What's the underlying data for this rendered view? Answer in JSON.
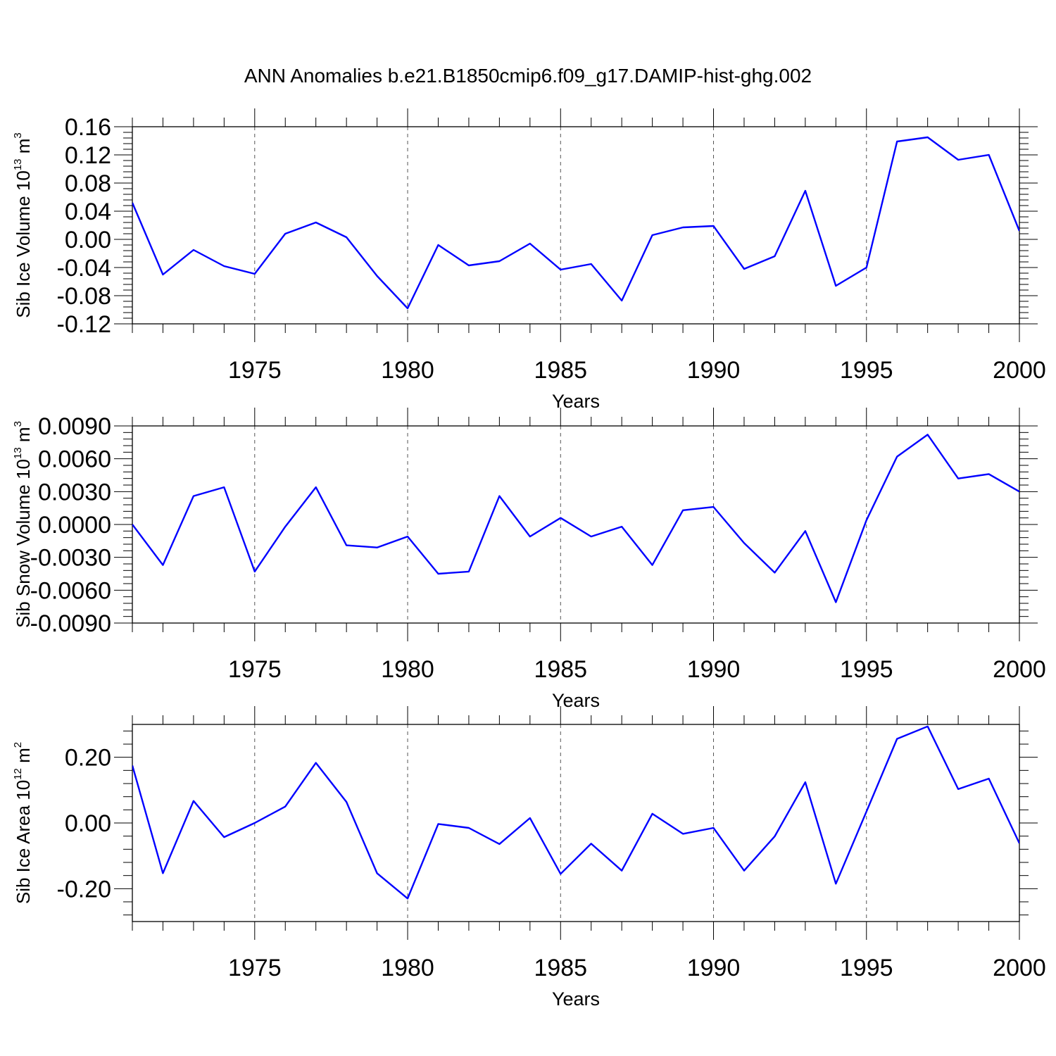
{
  "title": "ANN Anomalies b.e21.B1850cmip6.f09_g17.DAMIP-hist-ghg.002",
  "colors": {
    "series": "#0000ff",
    "axis": "#000000",
    "grid": "#555555"
  },
  "chart_data": [
    {
      "type": "line",
      "ylabel": {
        "prefix": "Sib Ice Volume 10",
        "exp": "13",
        "unit": " m",
        "unit_exp": "3"
      },
      "xlabel": "Years",
      "xlim": [
        1971,
        2000
      ],
      "xticks": [
        "1975",
        "1980",
        "1985",
        "1990",
        "1995",
        "2000"
      ],
      "ylim": [
        -0.12,
        0.16
      ],
      "yticks": [
        "-0.12",
        "-0.08",
        "-0.04",
        "0.00",
        "0.04",
        "0.08",
        "0.12",
        "0.16"
      ],
      "x": [
        1971,
        1972,
        1973,
        1974,
        1975,
        1976,
        1977,
        1978,
        1979,
        1980,
        1981,
        1982,
        1983,
        1984,
        1985,
        1986,
        1987,
        1988,
        1989,
        1990,
        1991,
        1992,
        1993,
        1994,
        1995,
        1996,
        1997,
        1998,
        1999,
        2000
      ],
      "values": [
        0.052,
        -0.05,
        -0.015,
        -0.038,
        -0.049,
        0.008,
        0.024,
        0.003,
        -0.052,
        -0.098,
        -0.008,
        -0.037,
        -0.031,
        -0.006,
        -0.043,
        -0.035,
        -0.087,
        0.006,
        0.017,
        0.019,
        -0.042,
        -0.024,
        0.069,
        -0.066,
        -0.04,
        0.139,
        0.145,
        0.113,
        0.12,
        0.012
      ]
    },
    {
      "type": "line",
      "ylabel": {
        "prefix": "Sib Snow Volume 10",
        "exp": "13",
        "unit": " m",
        "unit_exp": "3"
      },
      "xlabel": "Years",
      "xlim": [
        1971,
        2000
      ],
      "xticks": [
        "1975",
        "1980",
        "1985",
        "1990",
        "1995",
        "2000"
      ],
      "ylim": [
        -0.009,
        0.009
      ],
      "yticks": [
        "-0.0090",
        "-0.0060",
        "-0.0030",
        "0.0000",
        "0.0030",
        "0.0060",
        "0.0090"
      ],
      "x": [
        1971,
        1972,
        1973,
        1974,
        1975,
        1976,
        1977,
        1978,
        1979,
        1980,
        1981,
        1982,
        1983,
        1984,
        1985,
        1986,
        1987,
        1988,
        1989,
        1990,
        1991,
        1992,
        1993,
        1994,
        1995,
        1996,
        1997,
        1998,
        1999,
        2000
      ],
      "values": [
        0.0,
        -0.0037,
        0.0026,
        0.0034,
        -0.0043,
        -0.0002,
        0.0034,
        -0.0019,
        -0.0021,
        -0.0011,
        -0.0045,
        -0.0043,
        0.0026,
        -0.0011,
        0.0006,
        -0.0011,
        -0.0002,
        -0.0037,
        0.0013,
        0.0016,
        -0.0017,
        -0.0044,
        -0.0006,
        -0.0071,
        0.0004,
        0.0062,
        0.0082,
        0.0042,
        0.0046,
        0.003
      ]
    },
    {
      "type": "line",
      "ylabel": {
        "prefix": "Sib Ice Area 10",
        "exp": "12",
        "unit": " m",
        "unit_exp": "2"
      },
      "xlabel": "Years",
      "xlim": [
        1971,
        2000
      ],
      "xticks": [
        "1975",
        "1980",
        "1985",
        "1990",
        "1995",
        "2000"
      ],
      "ylim": [
        -0.3,
        0.3
      ],
      "yticks": [
        "-0.20",
        "0.00",
        "0.20"
      ],
      "x": [
        1971,
        1972,
        1973,
        1974,
        1975,
        1976,
        1977,
        1978,
        1979,
        1980,
        1981,
        1982,
        1983,
        1984,
        1985,
        1986,
        1987,
        1988,
        1989,
        1990,
        1991,
        1992,
        1993,
        1994,
        1995,
        1996,
        1997,
        1998,
        1999,
        2000
      ],
      "values": [
        0.175,
        -0.153,
        0.067,
        -0.043,
        0.0,
        0.05,
        0.183,
        0.064,
        -0.153,
        -0.23,
        -0.003,
        -0.015,
        -0.064,
        0.015,
        -0.155,
        -0.063,
        -0.145,
        0.028,
        -0.033,
        -0.015,
        -0.145,
        -0.041,
        0.124,
        -0.185,
        0.035,
        0.256,
        0.294,
        0.103,
        0.135,
        -0.062
      ]
    }
  ]
}
